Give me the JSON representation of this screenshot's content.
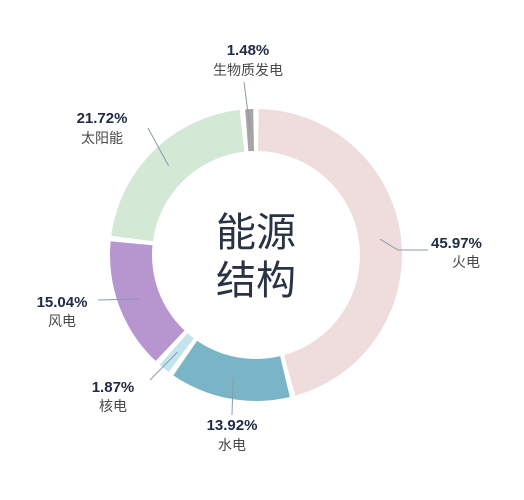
{
  "chart_data": {
    "type": "pie",
    "variant": "donut",
    "center_title": [
      "能源",
      "结构"
    ],
    "slices": [
      {
        "label": "火电",
        "value": 45.97,
        "display": "45.97%",
        "color": "#efdcdc"
      },
      {
        "label": "水电",
        "value": 13.92,
        "display": "13.92%",
        "color": "#7ab4c7"
      },
      {
        "label": "核电",
        "value": 1.87,
        "display": "1.87%",
        "color": "#c3e3ef"
      },
      {
        "label": "风电",
        "value": 15.04,
        "display": "15.04%",
        "color": "#b796cf"
      },
      {
        "label": "太阳能",
        "value": 21.72,
        "display": "21.72%",
        "color": "#d3e8d5"
      },
      {
        "label": "生物质发电",
        "value": 1.48,
        "display": "1.48%",
        "color": "#a9a4a4"
      }
    ],
    "start_angle_deg": 0,
    "direction": "clockwise"
  }
}
